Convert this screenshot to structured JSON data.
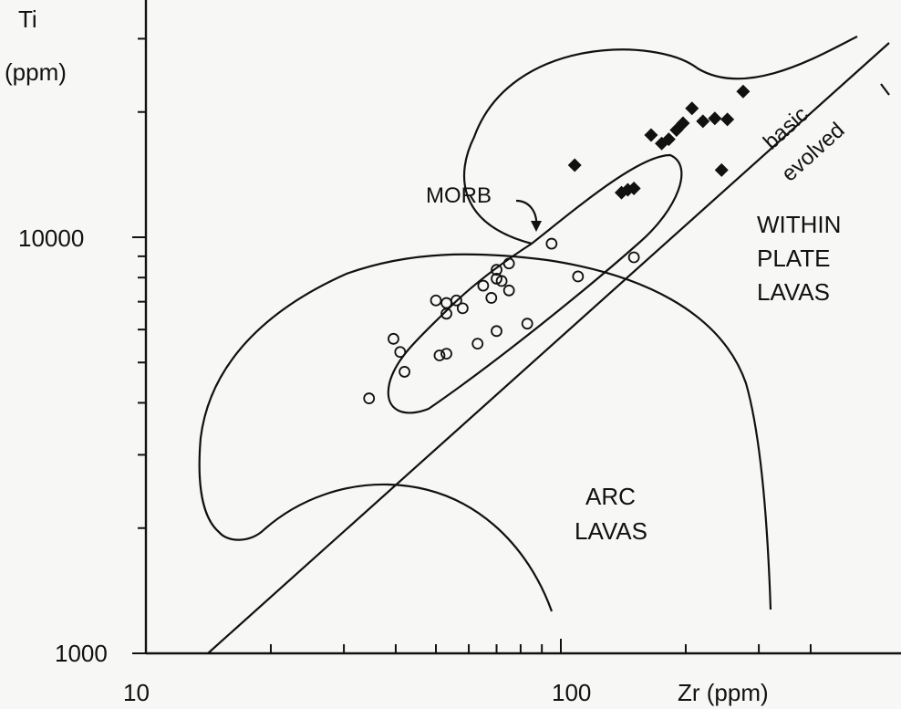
{
  "chart_data": {
    "type": "scatter",
    "xscale": "log",
    "yscale": "log",
    "xlim": [
      10,
      400
    ],
    "ylim": [
      1000,
      30000
    ],
    "xlabel": "Zr (ppm)",
    "ylabel_line1": "Ti",
    "ylabel_line2": "(ppm)",
    "x_tick_labels": [
      "10",
      "100"
    ],
    "x_tick_values": [
      10,
      100
    ],
    "y_tick_labels": [
      "10000",
      "1000"
    ],
    "y_tick_values": [
      10000,
      1000
    ],
    "grid": false,
    "annotations": {
      "morb": "MORB",
      "within_plate_1": "WITHIN",
      "within_plate_2": "PLATE",
      "within_plate_3": "LAVAS",
      "arc_1": "ARC",
      "arc_2": "LAVAS",
      "basic": "basic",
      "evolved": "evolved"
    },
    "series": [
      {
        "marker": "open-circle",
        "points": [
          [
            34.5,
            4100
          ],
          [
            39.5,
            5700
          ],
          [
            41,
            5300
          ],
          [
            42,
            4750
          ],
          [
            51,
            5200
          ],
          [
            53,
            5250
          ],
          [
            53,
            6550
          ],
          [
            53,
            6950
          ],
          [
            50,
            7050
          ],
          [
            56,
            7050
          ],
          [
            58,
            6750
          ],
          [
            63,
            5550
          ],
          [
            65,
            7650
          ],
          [
            68,
            7150
          ],
          [
            70,
            7950
          ],
          [
            70,
            8350
          ],
          [
            72,
            7850
          ],
          [
            75,
            8650
          ],
          [
            75,
            7450
          ],
          [
            70,
            5950
          ],
          [
            83,
            6200
          ],
          [
            95,
            9650
          ],
          [
            110,
            8050
          ],
          [
            150,
            8950
          ]
        ]
      },
      {
        "marker": "filled-diamond",
        "points": [
          [
            108,
            14900
          ],
          [
            140,
            12800
          ],
          [
            145,
            13000
          ],
          [
            150,
            13100
          ],
          [
            165,
            17600
          ],
          [
            175,
            16800
          ],
          [
            182,
            17200
          ],
          [
            190,
            18100
          ],
          [
            197,
            18800
          ],
          [
            207,
            20400
          ],
          [
            220,
            19000
          ],
          [
            235,
            19300
          ],
          [
            252,
            19200
          ],
          [
            244,
            14500
          ],
          [
            275,
            22400
          ]
        ]
      }
    ]
  }
}
